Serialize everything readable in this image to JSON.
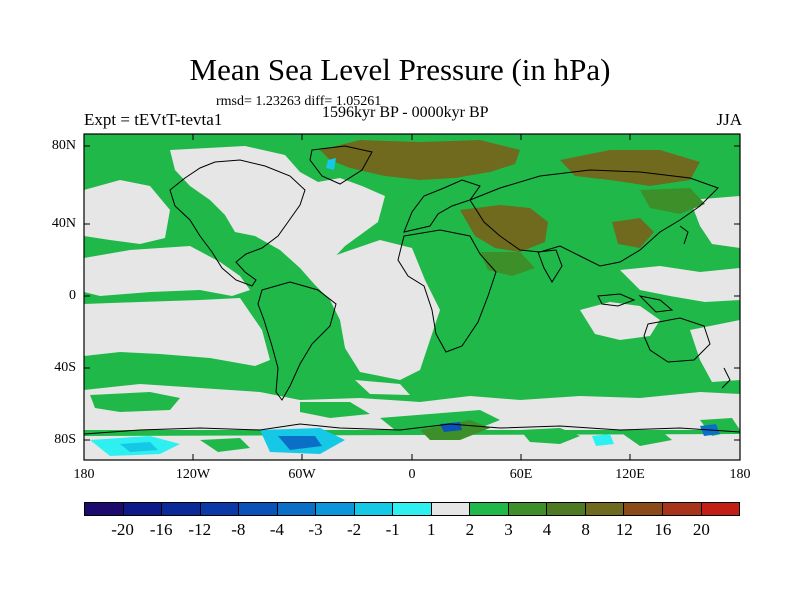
{
  "title": "Mean Sea Level Pressure (in hPa)",
  "stats": "rmsd= 1.23263 diff= 1.05261",
  "period": "1596kyr BP - 0000kyr BP",
  "experiment": "Expt = tEVtT-tevta1",
  "season": "JJA",
  "axes": {
    "lat_labels": [
      "80N",
      "40N",
      "0",
      "40S",
      "80S"
    ],
    "lon_labels": [
      "180",
      "120W",
      "60W",
      "0",
      "60E",
      "120E",
      "180"
    ]
  },
  "colorbar": {
    "labels": [
      "-20",
      "-16",
      "-12",
      "-8",
      "-4",
      "-3",
      "-2",
      "-1",
      "1",
      "2",
      "3",
      "4",
      "8",
      "12",
      "16",
      "20"
    ],
    "colors": [
      "#1d0a6e",
      "#0e1a8a",
      "#0a2a9a",
      "#0b3aa8",
      "#0b52b8",
      "#0b6fc8",
      "#0b96dc",
      "#14c8e6",
      "#2ef0f0",
      "#e6e6e6",
      "#21b84a",
      "#3d8f2a",
      "#4f7a24",
      "#6f6a1e",
      "#8a4a1a",
      "#a8341a",
      "#c21e14"
    ]
  }
}
